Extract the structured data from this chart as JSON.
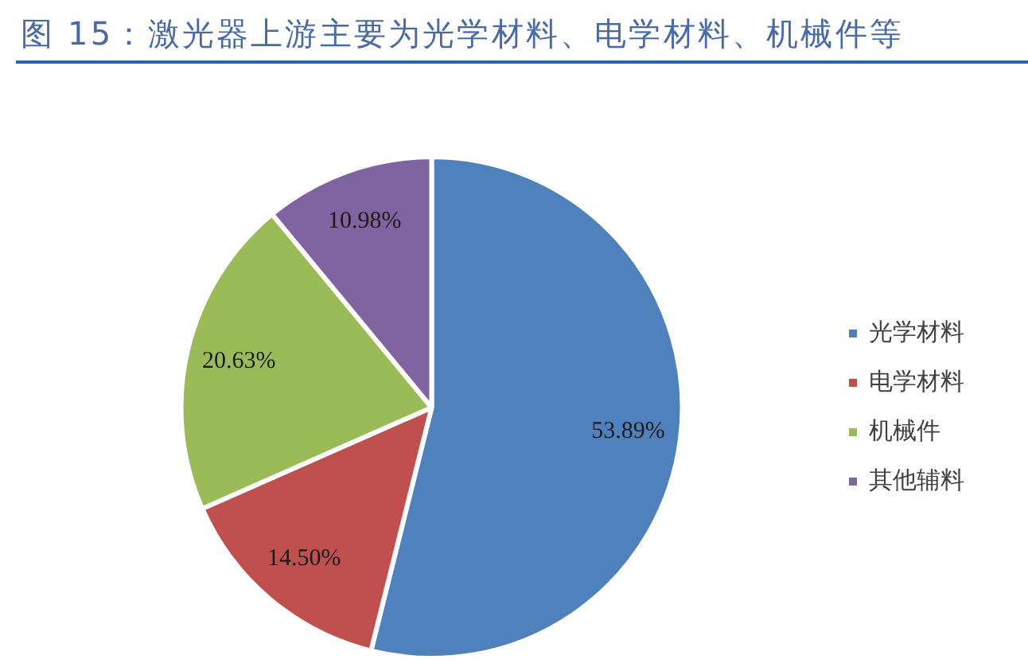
{
  "chart_data": {
    "type": "pie",
    "title": "图 15：激光器上游主要为光学材料、电学材料、机械件等",
    "categories": [
      "光学材料",
      "电学材料",
      "机械件",
      "其他辅料"
    ],
    "values": [
      53.89,
      14.5,
      20.63,
      10.98
    ],
    "colors": [
      "#4f81bd",
      "#c0504d",
      "#9bbb59",
      "#8064a2"
    ],
    "value_labels": [
      "53.89%",
      "14.50%",
      "20.63%",
      "10.98%"
    ],
    "legend": "right"
  }
}
